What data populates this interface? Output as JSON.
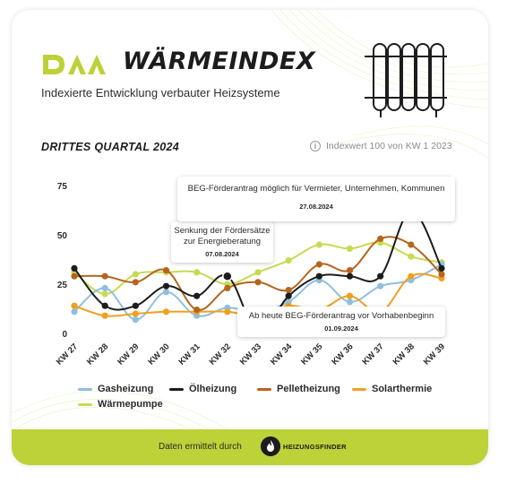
{
  "header": {
    "logo_text": "DAA",
    "title": "WÄRMEINDEX",
    "subtitle": "Indexierte Entwicklung verbauter Heizsysteme",
    "quarter": "DRITTES QUARTAL 2024",
    "index_note": "Indexwert 100 von KW 1 2023",
    "info_icon_glyph": "i"
  },
  "colors": {
    "accent": "#bdd138",
    "Gasheizung": "#8fbfe0",
    "Ölheizung": "#1c1c1c",
    "Pelletheizung": "#b5651d",
    "Solarthermie": "#f0a020",
    "Wärmepumpe": "#c8da52"
  },
  "annotations": [
    {
      "text_lines": [
        "Senkung der Fördersätze",
        "zur Energieberatung"
      ],
      "date": "07.08.2024"
    },
    {
      "text_lines": [
        "BEG-Förderantrag möglich für Vermieter, Unternehmen, Kommunen"
      ],
      "date": "27.08.2024"
    },
    {
      "text_lines": [
        "Ab heute BEG-Förderantrag vor Vorhabenbeginn"
      ],
      "date": "01.09.2024"
    }
  ],
  "chart_data": {
    "type": "line",
    "x": [
      "KW 27",
      "KW 28",
      "KW 29",
      "KW 30",
      "KW 31",
      "KW 32",
      "KW 33",
      "KW 34",
      "KW 35",
      "KW 36",
      "KW 37",
      "KW 38",
      "KW 39"
    ],
    "ylim": [
      0,
      75
    ],
    "yticks": [
      0,
      25,
      50,
      75
    ],
    "grid": false,
    "legend_placement": "bottom",
    "series": [
      {
        "name": "Gasheizung",
        "values": [
          11,
          23,
          7,
          21,
          9,
          13,
          11,
          16,
          27,
          16,
          24,
          27,
          35
        ]
      },
      {
        "name": "Ölheizung",
        "values": [
          33,
          14,
          14,
          24,
          19,
          29,
          1,
          19,
          29,
          29,
          29,
          62,
          33
        ]
      },
      {
        "name": "Pelletheizung",
        "values": [
          29,
          29,
          26,
          32,
          12,
          23,
          26,
          22,
          35,
          32,
          48,
          45,
          30
        ]
      },
      {
        "name": "Solarthermie",
        "values": [
          14,
          9,
          10,
          11,
          11,
          11,
          9,
          14,
          12,
          19,
          11,
          29,
          28
        ]
      },
      {
        "name": "Wärmepumpe",
        "values": [
          31,
          20,
          30,
          31,
          31,
          25,
          31,
          37,
          45,
          43,
          46,
          39,
          36
        ]
      }
    ]
  },
  "footer": {
    "text": "Daten ermittelt durch",
    "brand": "HEIZUNGSFINDER"
  }
}
